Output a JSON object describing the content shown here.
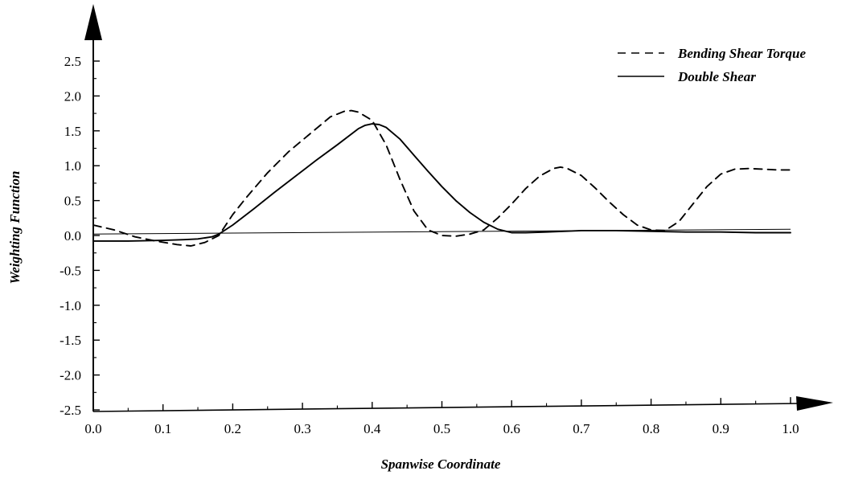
{
  "chart_data": {
    "type": "line",
    "xlabel": "Spanwise Coordinate",
    "ylabel": "Weighting Function",
    "xlim": [
      0.0,
      1.0
    ],
    "ylim": [
      -2.5,
      2.5
    ],
    "x_ticks": [
      "0.0",
      "0.1",
      "0.2",
      "0.3",
      "0.4",
      "0.5",
      "0.6",
      "0.7",
      "0.8",
      "0.9",
      "1.0"
    ],
    "y_ticks": [
      "2.5",
      "2.0",
      "1.5",
      "1.0",
      "0.5",
      "0.0",
      "-0.5",
      "-1.0",
      "-1.5",
      "-2.0",
      "-2.5"
    ],
    "grid": false,
    "legend_position": "top-right",
    "series": [
      {
        "name": "Bending Shear Torque",
        "style": "dashed",
        "color": "#000000",
        "x": [
          0.0,
          0.03,
          0.06,
          0.09,
          0.12,
          0.14,
          0.16,
          0.18,
          0.2,
          0.22,
          0.25,
          0.28,
          0.31,
          0.34,
          0.36,
          0.37,
          0.38,
          0.4,
          0.42,
          0.44,
          0.46,
          0.48,
          0.5,
          0.52,
          0.54,
          0.56,
          0.58,
          0.6,
          0.62,
          0.64,
          0.66,
          0.67,
          0.68,
          0.7,
          0.72,
          0.74,
          0.76,
          0.78,
          0.8,
          0.82,
          0.84,
          0.86,
          0.88,
          0.9,
          0.92,
          0.94,
          0.96,
          0.98,
          1.0
        ],
        "values": [
          0.15,
          0.08,
          -0.02,
          -0.08,
          -0.13,
          -0.15,
          -0.1,
          0.0,
          0.3,
          0.55,
          0.9,
          1.2,
          1.45,
          1.7,
          1.78,
          1.79,
          1.77,
          1.65,
          1.3,
          0.8,
          0.35,
          0.08,
          0.0,
          -0.01,
          0.02,
          0.08,
          0.25,
          0.45,
          0.67,
          0.85,
          0.96,
          0.98,
          0.96,
          0.86,
          0.68,
          0.48,
          0.3,
          0.15,
          0.08,
          0.07,
          0.2,
          0.45,
          0.7,
          0.88,
          0.95,
          0.96,
          0.95,
          0.94,
          0.94
        ]
      },
      {
        "name": "Double Shear",
        "style": "solid",
        "color": "#000000",
        "x": [
          0.0,
          0.05,
          0.1,
          0.13,
          0.15,
          0.17,
          0.18,
          0.2,
          0.23,
          0.26,
          0.29,
          0.32,
          0.35,
          0.38,
          0.39,
          0.4,
          0.41,
          0.42,
          0.44,
          0.46,
          0.48,
          0.5,
          0.52,
          0.54,
          0.56,
          0.58,
          0.6,
          0.62,
          0.65,
          0.7,
          0.75,
          0.8,
          0.85,
          0.9,
          0.95,
          1.0
        ],
        "values": [
          -0.08,
          -0.08,
          -0.07,
          -0.06,
          -0.05,
          -0.02,
          0.02,
          0.15,
          0.38,
          0.62,
          0.85,
          1.08,
          1.3,
          1.53,
          1.58,
          1.6,
          1.59,
          1.55,
          1.38,
          1.15,
          0.92,
          0.7,
          0.5,
          0.33,
          0.19,
          0.09,
          0.04,
          0.04,
          0.05,
          0.07,
          0.07,
          0.06,
          0.05,
          0.05,
          0.04,
          0.04
        ]
      }
    ],
    "annotations": [
      {
        "kind": "reference-line",
        "x": [
          0.0,
          1.0
        ],
        "values": [
          0.02,
          0.09
        ]
      }
    ]
  }
}
